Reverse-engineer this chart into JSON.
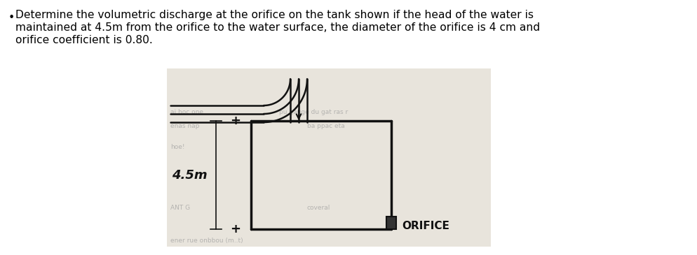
{
  "background_color": "#ffffff",
  "text_lines": [
    "Determine the volumetric discharge at the orifice on the tank shown if the head of the water is",
    "maintained at 4.5m from the orifice to the water surface, the diameter of the orifice is 4 cm and",
    "orifice coefficient is 0.80."
  ],
  "text_fontsize": 11.2,
  "diagram_bg": "#e8e4dc",
  "tank_color": "#111111",
  "label_45m": "4.5m",
  "label_orifice": "ORIFICE",
  "faded_color": "#999999"
}
